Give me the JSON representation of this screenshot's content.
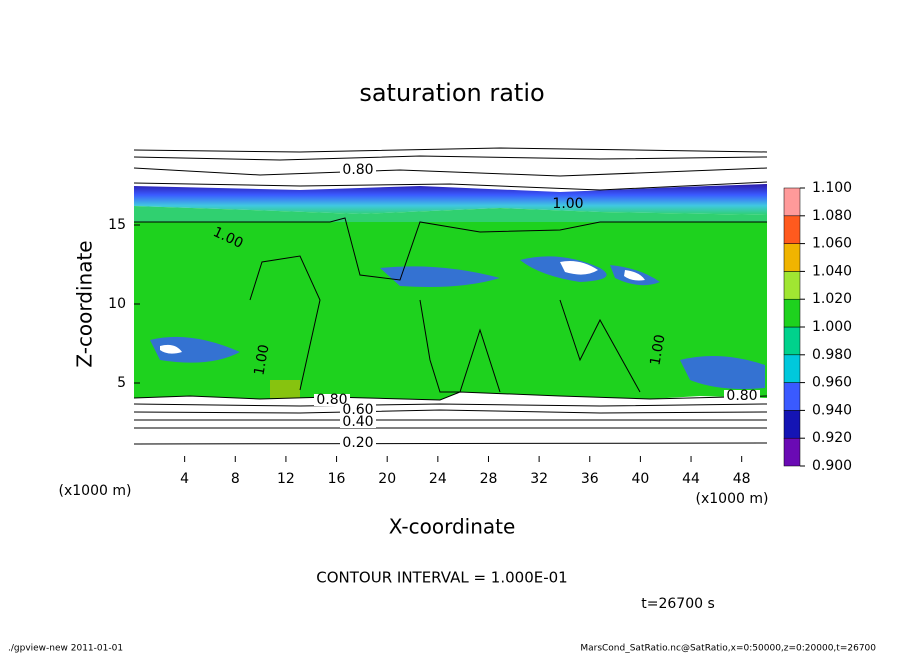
{
  "chart_data": {
    "type": "contour",
    "title": "saturation ratio",
    "x_label": "X-coordinate",
    "y_label": "Z-coordinate",
    "axis_unit": "(x1000 m)",
    "xlim": [
      0,
      50
    ],
    "xticks": [
      4,
      8,
      12,
      16,
      20,
      24,
      28,
      32,
      36,
      40,
      44,
      48
    ],
    "ylim": [
      0,
      20
    ],
    "yticks": [
      5,
      10,
      15
    ],
    "colorbar": {
      "ticks": [
        {
          "value": 0.9,
          "label": "0.900"
        },
        {
          "value": 0.92,
          "label": "0.920"
        },
        {
          "value": 0.94,
          "label": "0.940"
        },
        {
          "value": 0.96,
          "label": "0.960"
        },
        {
          "value": 0.98,
          "label": "0.980"
        },
        {
          "value": 1.0,
          "label": "1.000"
        },
        {
          "value": 1.02,
          "label": "1.020"
        },
        {
          "value": 1.04,
          "label": "1.040"
        },
        {
          "value": 1.06,
          "label": "1.060"
        },
        {
          "value": 1.08,
          "label": "1.080"
        },
        {
          "value": 1.1,
          "label": "1.100"
        }
      ],
      "colors": [
        "#6a0ab4",
        "#1414b4",
        "#3a5aff",
        "#00c8dc",
        "#00d28c",
        "#1ed21e",
        "#a0e632",
        "#f0b400",
        "#ff5a1e",
        "#ff9a9a"
      ]
    },
    "contour_labels": [
      "0.80",
      "1.00",
      "1.00",
      "1.00",
      "1.00",
      "0.80",
      "0.60",
      "0.40",
      "0.20",
      "0.80"
    ],
    "contour_interval": "CONTOUR INTERVAL = 1.000E-01",
    "time_label": "t=26700 s",
    "footer_left": "./gpview-new   2011-01-01",
    "footer_right": "MarsCond_SatRatio.nc@SatRatio,x=0:50000,z=0:20000,t=26700"
  }
}
